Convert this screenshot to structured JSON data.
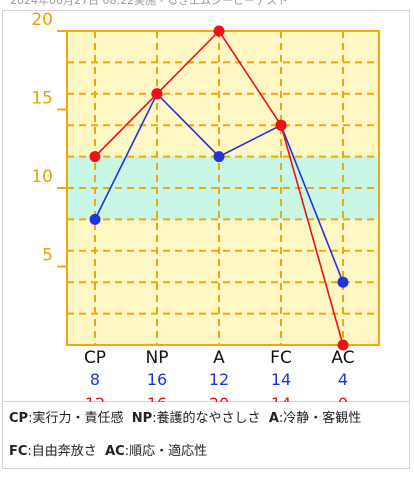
{
  "header_fragment": "2024年06月27日 08:22実施 - るきエムジーピーテスト",
  "colors": {
    "plot_bg": "#fff8c4",
    "band": "#c9f7e6",
    "grid": "#f0a80a",
    "axis_label": "#f0a000",
    "series_blue": "#2233dd",
    "series_red": "#ee1111"
  },
  "chart_data": {
    "type": "line",
    "categories": [
      "CP",
      "NP",
      "A",
      "FC",
      "AC"
    ],
    "ylim": [
      0,
      20
    ],
    "yticks": [
      5,
      10,
      15,
      20
    ],
    "band": [
      8,
      12
    ],
    "grid": true,
    "series": [
      {
        "values": [
          8,
          16,
          12,
          14,
          4
        ],
        "color": "#2233dd"
      },
      {
        "values": [
          12,
          16,
          20,
          14,
          0
        ],
        "color": "#ee1111"
      }
    ]
  },
  "legend": {
    "row1": [
      {
        "key": "CP",
        "text": ":実行力・責任感"
      },
      {
        "key": "NP",
        "text": ":養護的なやさしさ"
      },
      {
        "key": "A",
        "text": ":冷静・客観性"
      }
    ],
    "row2": [
      {
        "key": "FC",
        "text": ":自由奔放さ"
      },
      {
        "key": "AC",
        "text": ":順応・適応性"
      }
    ]
  }
}
